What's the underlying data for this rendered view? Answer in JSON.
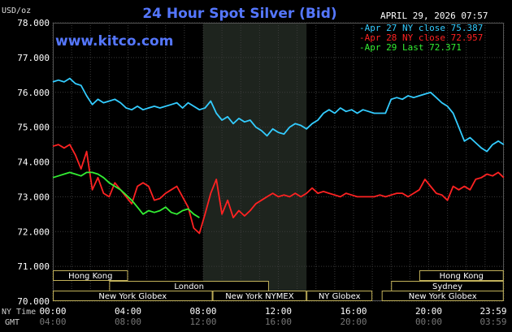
{
  "chart_data": {
    "type": "line",
    "title": "24 Hour Spot Silver (Bid)",
    "timestamp": "APRIL 29, 2026 07:57",
    "watermark": "www.kitco.com",
    "y_unit": "USD/oz",
    "ylim": [
      70.0,
      78.0
    ],
    "y_ticks": [
      "70.000",
      "71.000",
      "72.000",
      "73.000",
      "74.000",
      "75.000",
      "76.000",
      "77.000",
      "78.000"
    ],
    "x_row_labels": {
      "ny": "NY Time",
      "gmt": "GMT"
    },
    "x_ticks_ny": [
      "00:00",
      "04:00",
      "08:00",
      "12:00",
      "16:00",
      "20:00",
      "23:59"
    ],
    "x_ticks_gmt": [
      "04:00",
      "08:00",
      "12:00",
      "16:00",
      "20:00",
      "00:00",
      "03:59"
    ],
    "xlim_hours": [
      0,
      24
    ],
    "highlight_hours": [
      8.0,
      13.5
    ],
    "legend": [
      {
        "text": "Apr 27 NY close 75.387",
        "color": "#33ccff"
      },
      {
        "text": "Apr 28 NY close 72.957",
        "color": "#ff2222"
      },
      {
        "text": "Apr 29 Last 72.371",
        "color": "#33ee33"
      }
    ],
    "series": [
      {
        "name": "Apr 27",
        "color": "#33ccff",
        "x": [
          0,
          0.3,
          0.6,
          0.9,
          1.2,
          1.5,
          1.8,
          2.1,
          2.4,
          2.7,
          3.0,
          3.3,
          3.6,
          3.9,
          4.2,
          4.5,
          4.8,
          5.1,
          5.4,
          5.7,
          6.0,
          6.3,
          6.6,
          6.9,
          7.2,
          7.5,
          7.8,
          8.1,
          8.4,
          8.7,
          9.0,
          9.3,
          9.6,
          9.9,
          10.2,
          10.5,
          10.8,
          11.1,
          11.4,
          11.7,
          12.0,
          12.3,
          12.6,
          12.9,
          13.2,
          13.5,
          13.8,
          14.1,
          14.4,
          14.7,
          15.0,
          15.3,
          15.6,
          15.9,
          16.2,
          16.5,
          16.8,
          17.1,
          17.4,
          17.7,
          18.0,
          18.3,
          18.6,
          18.9,
          19.2,
          19.5,
          19.8,
          20.1,
          20.4,
          20.7,
          21.0,
          21.3,
          21.6,
          21.9,
          22.2,
          22.5,
          22.8,
          23.1,
          23.4,
          23.7,
          23.99
        ],
        "y": [
          76.3,
          76.35,
          76.3,
          76.4,
          76.25,
          76.2,
          75.9,
          75.65,
          75.8,
          75.7,
          75.75,
          75.8,
          75.7,
          75.55,
          75.5,
          75.6,
          75.5,
          75.55,
          75.6,
          75.55,
          75.6,
          75.65,
          75.7,
          75.55,
          75.7,
          75.6,
          75.5,
          75.55,
          75.75,
          75.4,
          75.2,
          75.3,
          75.1,
          75.25,
          75.15,
          75.2,
          75.0,
          74.9,
          74.75,
          74.95,
          74.85,
          74.8,
          75.0,
          75.1,
          75.05,
          74.95,
          75.1,
          75.2,
          75.4,
          75.5,
          75.4,
          75.55,
          75.45,
          75.5,
          75.4,
          75.5,
          75.45,
          75.4,
          75.4,
          75.4,
          75.8,
          75.85,
          75.8,
          75.9,
          75.85,
          75.9,
          75.95,
          76.0,
          75.85,
          75.7,
          75.6,
          75.4,
          75.0,
          74.6,
          74.7,
          74.55,
          74.4,
          74.3,
          74.5,
          74.6,
          74.5
        ]
      },
      {
        "name": "Apr 28",
        "color": "#ff2222",
        "x": [
          0,
          0.3,
          0.6,
          0.9,
          1.2,
          1.5,
          1.8,
          2.1,
          2.4,
          2.7,
          3.0,
          3.3,
          3.6,
          3.9,
          4.2,
          4.5,
          4.8,
          5.1,
          5.4,
          5.7,
          6.0,
          6.3,
          6.6,
          6.9,
          7.2,
          7.5,
          7.8,
          8.1,
          8.4,
          8.7,
          9.0,
          9.3,
          9.6,
          9.9,
          10.2,
          10.5,
          10.8,
          11.1,
          11.4,
          11.7,
          12.0,
          12.3,
          12.6,
          12.9,
          13.2,
          13.5,
          13.8,
          14.1,
          14.4,
          14.7,
          15.0,
          15.3,
          15.6,
          15.9,
          16.2,
          16.5,
          16.8,
          17.1,
          17.4,
          17.7,
          18.0,
          18.3,
          18.6,
          18.9,
          19.2,
          19.5,
          19.8,
          20.1,
          20.4,
          20.7,
          21.0,
          21.3,
          21.6,
          21.9,
          22.2,
          22.5,
          22.8,
          23.1,
          23.4,
          23.7,
          23.99
        ],
        "y": [
          74.45,
          74.5,
          74.4,
          74.5,
          74.2,
          73.8,
          74.3,
          73.2,
          73.55,
          73.1,
          73.0,
          73.4,
          73.2,
          73.0,
          72.8,
          73.3,
          73.4,
          73.3,
          72.9,
          72.95,
          73.1,
          73.2,
          73.3,
          73.0,
          72.7,
          72.1,
          71.95,
          72.5,
          73.1,
          73.5,
          72.5,
          72.9,
          72.4,
          72.6,
          72.45,
          72.6,
          72.8,
          72.9,
          73.0,
          73.1,
          73.0,
          73.05,
          73.0,
          73.1,
          73.0,
          73.1,
          73.25,
          73.1,
          73.15,
          73.1,
          73.05,
          73.0,
          73.1,
          73.05,
          73.0,
          73.0,
          73.0,
          73.0,
          73.05,
          73.0,
          73.05,
          73.1,
          73.1,
          73.0,
          73.1,
          73.2,
          73.5,
          73.3,
          73.1,
          73.05,
          72.9,
          73.3,
          73.2,
          73.3,
          73.2,
          73.5,
          73.55,
          73.65,
          73.6,
          73.7,
          73.55
        ]
      },
      {
        "name": "Apr 29",
        "color": "#33ee33",
        "x": [
          0,
          0.3,
          0.6,
          0.9,
          1.2,
          1.5,
          1.8,
          2.1,
          2.4,
          2.7,
          3.0,
          3.3,
          3.6,
          3.9,
          4.2,
          4.5,
          4.8,
          5.1,
          5.4,
          5.7,
          6.0,
          6.3,
          6.6,
          6.9,
          7.2,
          7.5,
          7.8
        ],
        "y": [
          73.55,
          73.6,
          73.65,
          73.7,
          73.65,
          73.6,
          73.7,
          73.7,
          73.65,
          73.55,
          73.4,
          73.3,
          73.2,
          73.05,
          72.9,
          72.7,
          72.5,
          72.6,
          72.55,
          72.6,
          72.7,
          72.55,
          72.5,
          72.6,
          72.65,
          72.5,
          72.4
        ]
      }
    ]
  },
  "sessions": [
    {
      "label": "Hong Kong",
      "start": 0.0,
      "end": 4.0,
      "row": 0
    },
    {
      "label": "Hong Kong",
      "start": 19.5,
      "end": 23.99,
      "row": 0
    },
    {
      "label": "London",
      "start": 3.0,
      "end": 11.5,
      "row": 1
    },
    {
      "label": "Sydney",
      "start": 18.0,
      "end": 23.99,
      "row": 1
    },
    {
      "label": "New York Globex",
      "start": 0.0,
      "end": 8.5,
      "row": 2
    },
    {
      "label": "New York NYMEX",
      "start": 8.5,
      "end": 13.5,
      "row": 2
    },
    {
      "label": "NY Globex",
      "start": 13.5,
      "end": 17.0,
      "row": 2
    },
    {
      "label": "New York Globex",
      "start": 17.5,
      "end": 23.99,
      "row": 2
    }
  ]
}
